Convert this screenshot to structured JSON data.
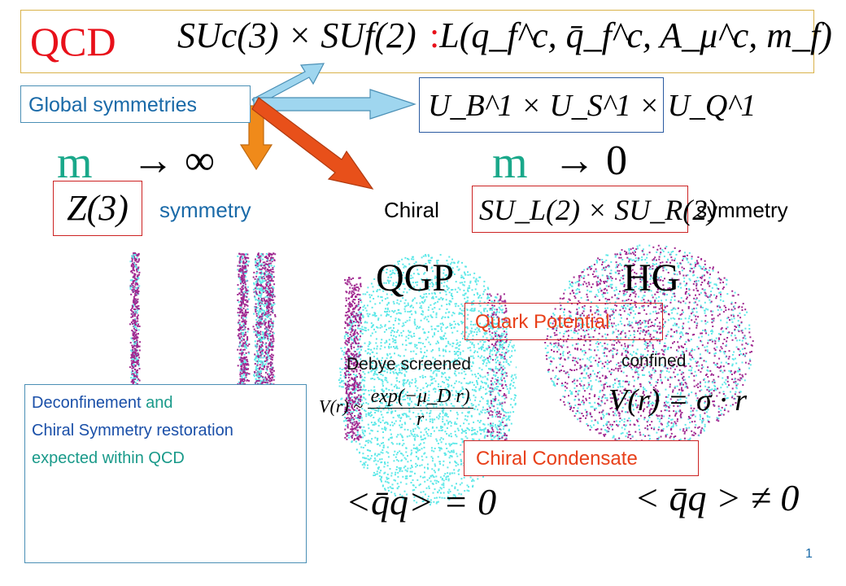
{
  "title": "QCD",
  "symmetry_group": "SUc(3) × SUf(2)",
  "lagrangian": {
    "colon": ":",
    "expression": "L(q_f^c, q̄_f^c, A_μ^c, m_f)"
  },
  "global_symmetries_label": "Global symmetries",
  "u1_symmetries": "U_B^1 × U_S^1 × U_Q^1",
  "limit_left": {
    "m": "m",
    "arrow": "→ ∞"
  },
  "limit_right": {
    "m": "m",
    "arrow": "→ 0"
  },
  "z3": "Z(3)",
  "symmetry_left": "symmetry",
  "chiral_label": "Chiral",
  "chiral_group": "SU_L(2) × SU_R(2)",
  "symmetry_right": "symmetry",
  "qgp_label": "QGP",
  "hg_label": "HG",
  "quark_potential_label": "Quark Potential",
  "debye_label": "Debye screened",
  "confined_label": "confined",
  "debye_formula": {
    "lhs": "V(r) ~",
    "num": "exp(−μ_D r)",
    "den": "r"
  },
  "confined_formula": "V(r) = σ · r",
  "chiral_condensate_label": "Chiral Condensate",
  "condensate_qgp": "<q̄q> = 0",
  "condensate_hg": "< q̄q > ≠ 0",
  "deconfinement_box": {
    "line1_a": "Deconfinement",
    "line1_b": " and",
    "line2": "Chiral Symmetry restoration",
    "line3": "expected within QCD"
  },
  "page_number": "1",
  "colors": {
    "title_red": "#e8101a",
    "blue_text": "#1a6aa8",
    "teal_m": "#1aa88a",
    "orange_label": "#e8401a",
    "arrow_blue": "#9fd6ef",
    "arrow_orange": "#f08a1a",
    "arrow_redorange": "#e8501a",
    "dots_cyan": "#5ee8e8",
    "dots_magenta": "#a02890"
  }
}
